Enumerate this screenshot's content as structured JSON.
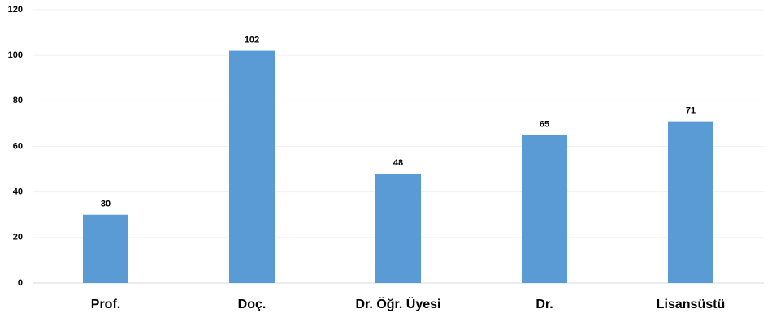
{
  "chart_data": {
    "type": "bar",
    "categories": [
      "Prof.",
      "Doç.",
      "Dr. Öğr. Üyesi",
      "Dr.",
      "Lisansüstü"
    ],
    "values": [
      30,
      102,
      48,
      65,
      71
    ],
    "color": "#5b9bd5",
    "ylim": [
      0,
      120
    ],
    "yticks": [
      0,
      20,
      40,
      60,
      80,
      100,
      120
    ],
    "grid": true
  }
}
